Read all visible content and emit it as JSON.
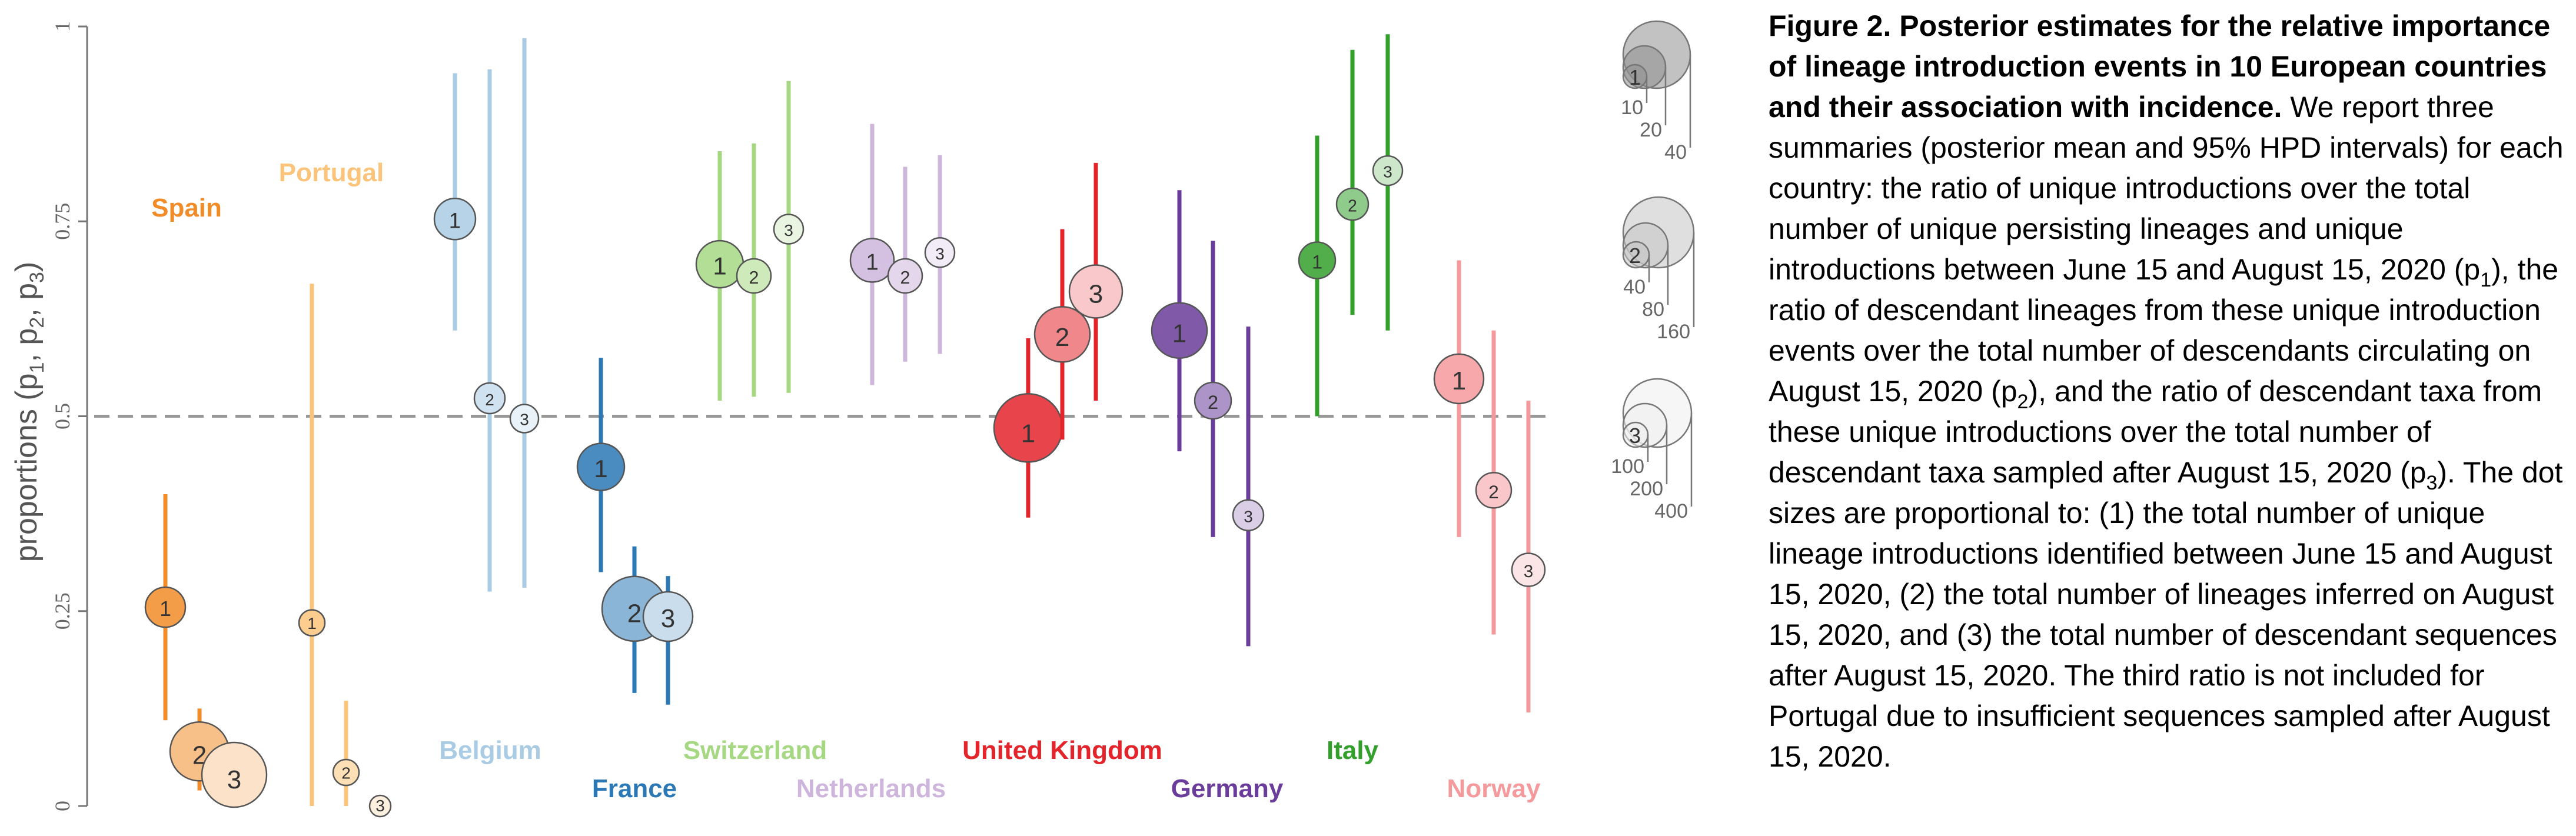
{
  "chart_data": {
    "type": "scatter",
    "ylabel_main": "proportions (p",
    "ylabel_subs": [
      "1",
      "2",
      "3"
    ],
    "ylabel_seps": [
      ", p",
      ", p",
      ")"
    ],
    "ylim": [
      0,
      1
    ],
    "yticks": [
      "0",
      "0.25",
      "0.5",
      "0.75",
      "1"
    ],
    "reference_line": 0.5,
    "countries": [
      {
        "name": "Spain",
        "color": "#f28c28",
        "estimates": [
          {
            "label": "1",
            "value": 0.255,
            "low": 0.11,
            "high": 0.4
          },
          {
            "label": "2",
            "value": 0.07,
            "low": 0.02,
            "high": 0.125
          },
          {
            "label": "3",
            "value": 0.04,
            "low": 0.0,
            "high": 0.08
          }
        ]
      },
      {
        "name": "Portugal",
        "color": "#fbc47a",
        "estimates": [
          {
            "label": "1",
            "value": 0.235,
            "low": 0.0,
            "high": 0.67
          },
          {
            "label": "2",
            "value": 0.043,
            "low": 0.0,
            "high": 0.135
          },
          {
            "label": "3",
            "value": 0.0,
            "low": null,
            "high": null
          }
        ]
      },
      {
        "name": "Belgium",
        "color": "#a9cbe3",
        "estimates": [
          {
            "label": "1",
            "value": 0.753,
            "low": 0.61,
            "high": 0.94
          },
          {
            "label": "2",
            "value": 0.523,
            "low": 0.275,
            "high": 0.945
          },
          {
            "label": "3",
            "value": 0.497,
            "low": 0.28,
            "high": 0.985
          }
        ]
      },
      {
        "name": "France",
        "color": "#2b78b5",
        "estimates": [
          {
            "label": "1",
            "value": 0.435,
            "low": 0.3,
            "high": 0.575
          },
          {
            "label": "2",
            "value": 0.253,
            "low": 0.145,
            "high": 0.333
          },
          {
            "label": "3",
            "value": 0.243,
            "low": 0.13,
            "high": 0.295
          }
        ]
      },
      {
        "name": "Switzerland",
        "color": "#a6d883",
        "estimates": [
          {
            "label": "1",
            "value": 0.695,
            "low": 0.52,
            "high": 0.84
          },
          {
            "label": "2",
            "value": 0.68,
            "low": 0.525,
            "high": 0.85
          },
          {
            "label": "3",
            "value": 0.74,
            "low": 0.53,
            "high": 0.93
          }
        ]
      },
      {
        "name": "Netherlands",
        "color": "#cdb5db",
        "estimates": [
          {
            "label": "1",
            "value": 0.7,
            "low": 0.54,
            "high": 0.875
          },
          {
            "label": "2",
            "value": 0.68,
            "low": 0.57,
            "high": 0.82
          },
          {
            "label": "3",
            "value": 0.71,
            "low": 0.58,
            "high": 0.835
          }
        ]
      },
      {
        "name": "United Kingdom",
        "color": "#e3252b",
        "estimates": [
          {
            "label": "1",
            "value": 0.485,
            "low": 0.37,
            "high": 0.6
          },
          {
            "label": "2",
            "value": 0.605,
            "low": 0.47,
            "high": 0.74
          },
          {
            "label": "3",
            "value": 0.66,
            "low": 0.52,
            "high": 0.825
          }
        ]
      },
      {
        "name": "Germany",
        "color": "#6a3d9a",
        "estimates": [
          {
            "label": "1",
            "value": 0.61,
            "low": 0.455,
            "high": 0.79
          },
          {
            "label": "2",
            "value": 0.52,
            "low": 0.345,
            "high": 0.725
          },
          {
            "label": "3",
            "value": 0.373,
            "low": 0.205,
            "high": 0.615
          }
        ]
      },
      {
        "name": "Italy",
        "color": "#33a02c",
        "estimates": [
          {
            "label": "1",
            "value": 0.7,
            "low": 0.5,
            "high": 0.86
          },
          {
            "label": "2",
            "value": 0.772,
            "low": 0.63,
            "high": 0.97
          },
          {
            "label": "3",
            "value": 0.815,
            "low": 0.61,
            "high": 0.99
          }
        ]
      },
      {
        "name": "Norway",
        "color": "#f4999c",
        "estimates": [
          {
            "label": "1",
            "value": 0.548,
            "low": 0.345,
            "high": 0.7
          },
          {
            "label": "2",
            "value": 0.405,
            "low": 0.22,
            "high": 0.61
          },
          {
            "label": "3",
            "value": 0.303,
            "low": 0.12,
            "high": 0.52
          }
        ]
      }
    ],
    "size_legend": [
      {
        "label": "1",
        "color": "#8f8f8f",
        "values": [
          "10",
          "20",
          "40"
        ]
      },
      {
        "label": "2",
        "color": "#c4c4c4",
        "values": [
          "40",
          "80",
          "160"
        ]
      },
      {
        "label": "3",
        "color": "#eeeeee",
        "values": [
          "100",
          "200",
          "400"
        ]
      }
    ]
  },
  "caption": {
    "bold": "Figure 2. Posterior estimates for the relative importance of lineage introduction events in 10 European countries and their association with incidence.",
    "part1": " We report three summaries (posterior mean and 95% HPD intervals) for each country: the ratio of unique introductions over the total number of unique persisting lineages and unique introductions between June 15 and August 15, 2020 (p",
    "sub1": "1",
    "part2": "), the ratio of descendant lineages from these unique introduction events over the total number of descendants circulating on August 15, 2020 (p",
    "sub2": "2",
    "part3": "), and the ratio of descendant taxa from these unique introductions over the total number of descendant taxa sampled after August 15, 2020 (p",
    "sub3": "3",
    "part4": "). The dot sizes are proportional to: (1) the total number of unique lineage introductions identified between June 15 and August 15, 2020, (2) the total number of lineages inferred on August 15, 2020, and (3) the total number of descendant sequences after August 15, 2020. The third ratio is not included for Portugal due to insufficient sequences sampled after August 15, 2020."
  }
}
